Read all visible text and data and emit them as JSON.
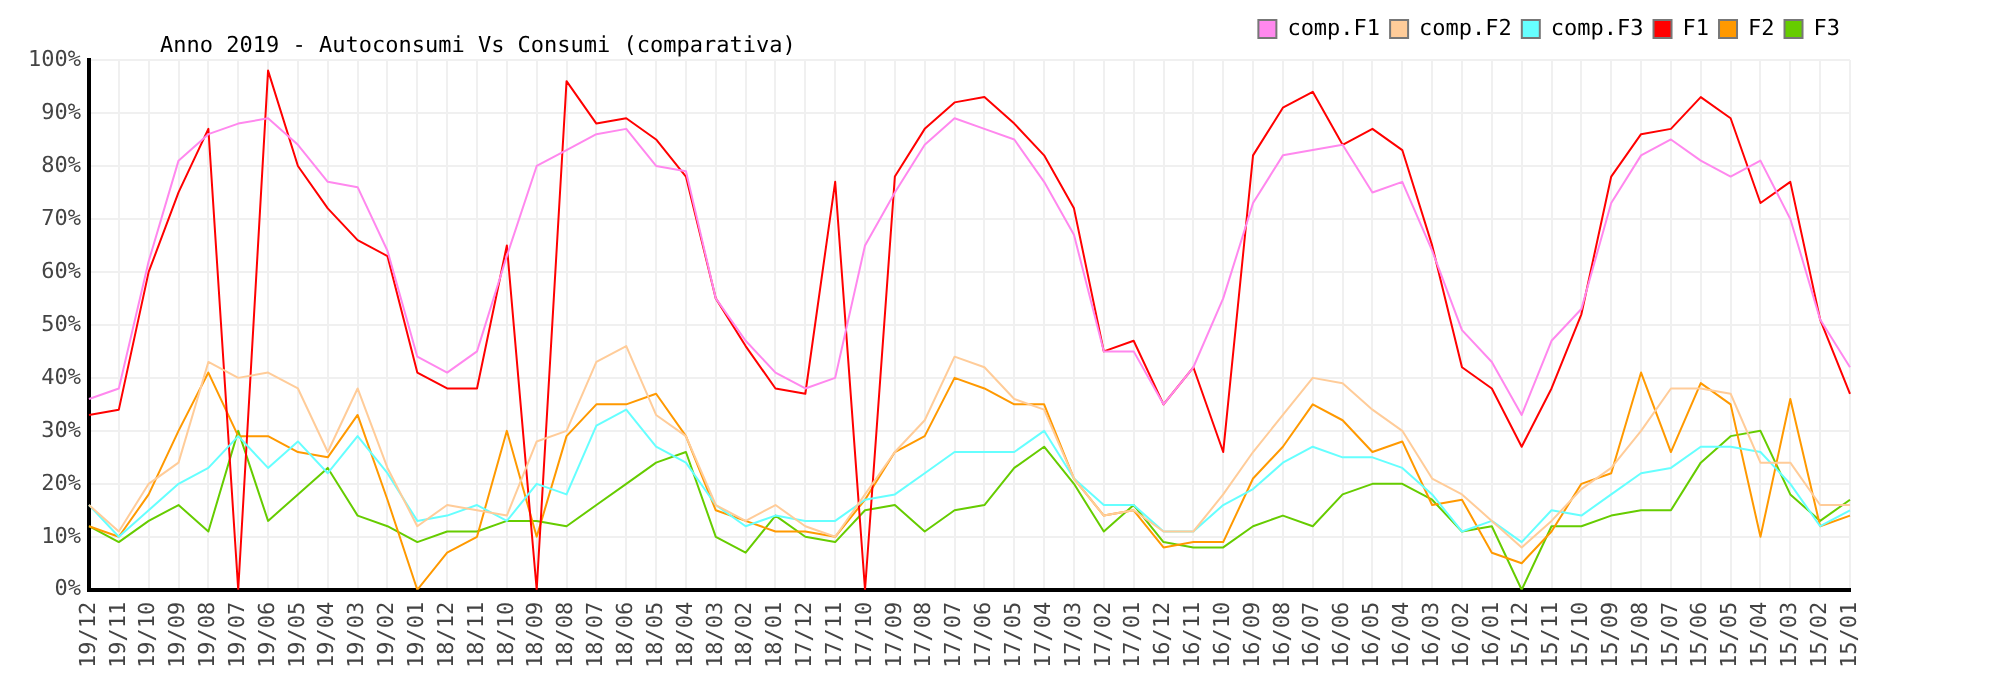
{
  "chart_data": {
    "type": "line",
    "title": "Anno 2019 - Autoconsumi Vs Consumi (comparativa)",
    "categories": [
      "19/12",
      "19/11",
      "19/10",
      "19/09",
      "19/08",
      "19/07",
      "19/06",
      "19/05",
      "19/04",
      "19/03",
      "19/02",
      "19/01",
      "18/12",
      "18/11",
      "18/10",
      "18/09",
      "18/08",
      "18/07",
      "18/06",
      "18/05",
      "18/04",
      "18/03",
      "18/02",
      "18/01",
      "17/12",
      "17/11",
      "17/10",
      "17/09",
      "17/08",
      "17/07",
      "17/06",
      "17/05",
      "17/04",
      "17/03",
      "17/02",
      "17/01",
      "16/12",
      "16/11",
      "16/10",
      "16/09",
      "16/08",
      "16/07",
      "16/06",
      "16/05",
      "16/04",
      "16/03",
      "16/02",
      "16/01",
      "15/12",
      "15/11",
      "15/10",
      "15/09",
      "15/08",
      "15/07",
      "15/06",
      "15/05",
      "15/04",
      "15/03",
      "15/02",
      "15/01"
    ],
    "series": [
      {
        "name": "comp.F1",
        "color": "#ff88ee",
        "values": [
          36,
          38,
          62,
          81,
          86,
          88,
          89,
          84,
          77,
          76,
          64,
          44,
          41,
          45,
          63,
          80,
          83,
          86,
          87,
          80,
          79,
          55,
          47,
          41,
          38,
          40,
          65,
          75,
          84,
          89,
          87,
          85,
          77,
          67,
          45,
          45,
          35,
          42,
          55,
          73,
          82,
          83,
          84,
          75,
          77,
          64,
          49,
          43,
          33,
          47,
          53,
          73,
          82,
          85,
          81,
          78,
          81,
          70,
          51,
          42
        ]
      },
      {
        "name": "comp.F2",
        "color": "#ffcc99",
        "values": [
          16,
          11,
          20,
          24,
          43,
          40,
          41,
          38,
          26,
          38,
          23,
          12,
          16,
          15,
          14,
          28,
          30,
          43,
          46,
          33,
          29,
          16,
          13,
          16,
          12,
          10,
          18,
          26,
          32,
          44,
          42,
          36,
          34,
          21,
          14,
          15,
          11,
          11,
          18,
          26,
          33,
          40,
          39,
          34,
          30,
          21,
          18,
          13,
          8,
          13,
          19,
          23,
          30,
          38,
          38,
          37,
          24,
          24,
          16,
          16
        ]
      },
      {
        "name": "comp.F3",
        "color": "#66ffff",
        "values": [
          16,
          10,
          15,
          20,
          23,
          29,
          23,
          28,
          22,
          29,
          22,
          13,
          14,
          16,
          13,
          20,
          18,
          31,
          34,
          27,
          24,
          16,
          12,
          14,
          13,
          13,
          17,
          18,
          22,
          26,
          26,
          26,
          30,
          21,
          16,
          16,
          11,
          11,
          16,
          19,
          24,
          27,
          25,
          25,
          23,
          18,
          11,
          13,
          9,
          15,
          14,
          18,
          22,
          23,
          27,
          27,
          26,
          20,
          12,
          15
        ]
      },
      {
        "name": "F1",
        "color": "#ff0000",
        "values": [
          33,
          34,
          60,
          75,
          87,
          0,
          98,
          80,
          72,
          66,
          63,
          41,
          38,
          38,
          65,
          0,
          96,
          88,
          89,
          85,
          78,
          55,
          46,
          38,
          37,
          77,
          0,
          78,
          87,
          92,
          93,
          88,
          82,
          72,
          45,
          47,
          35,
          42,
          26,
          82,
          91,
          94,
          84,
          87,
          83,
          65,
          42,
          38,
          27,
          38,
          52,
          78,
          86,
          87,
          93,
          89,
          73,
          77,
          51,
          37
        ]
      },
      {
        "name": "F2",
        "color": "#ff9900",
        "values": [
          12,
          10,
          18,
          30,
          41,
          29,
          29,
          26,
          25,
          33,
          17,
          0,
          7,
          10,
          30,
          10,
          29,
          35,
          35,
          37,
          29,
          15,
          13,
          11,
          11,
          10,
          17,
          26,
          29,
          40,
          38,
          35,
          35,
          21,
          14,
          15,
          8,
          9,
          9,
          21,
          27,
          35,
          32,
          26,
          28,
          16,
          17,
          7,
          5,
          11,
          20,
          22,
          41,
          26,
          39,
          35,
          10,
          36,
          12,
          14
        ]
      },
      {
        "name": "F3",
        "color": "#66cc00",
        "values": [
          12,
          9,
          13,
          16,
          11,
          30,
          13,
          18,
          23,
          14,
          12,
          9,
          11,
          11,
          13,
          13,
          12,
          16,
          20,
          24,
          26,
          10,
          7,
          14,
          10,
          9,
          15,
          16,
          11,
          15,
          16,
          23,
          27,
          20,
          11,
          16,
          9,
          8,
          8,
          12,
          14,
          12,
          18,
          20,
          20,
          17,
          11,
          12,
          0,
          12,
          12,
          14,
          15,
          15,
          24,
          29,
          30,
          18,
          13,
          17
        ]
      }
    ],
    "ylim": [
      0,
      100
    ],
    "yticks": [
      {
        "value": 0,
        "label": "0%"
      },
      {
        "value": 10,
        "label": "10%"
      },
      {
        "value": 20,
        "label": "20%"
      },
      {
        "value": 30,
        "label": "30%"
      },
      {
        "value": 40,
        "label": "40%"
      },
      {
        "value": 50,
        "label": "50%"
      },
      {
        "value": 60,
        "label": "60%"
      },
      {
        "value": 70,
        "label": "70%"
      },
      {
        "value": 80,
        "label": "80%"
      },
      {
        "value": 90,
        "label": "90%"
      },
      {
        "value": 100,
        "label": "100%"
      }
    ],
    "grid": true,
    "legend": "top right",
    "marker": "none",
    "line_style": "solid"
  }
}
